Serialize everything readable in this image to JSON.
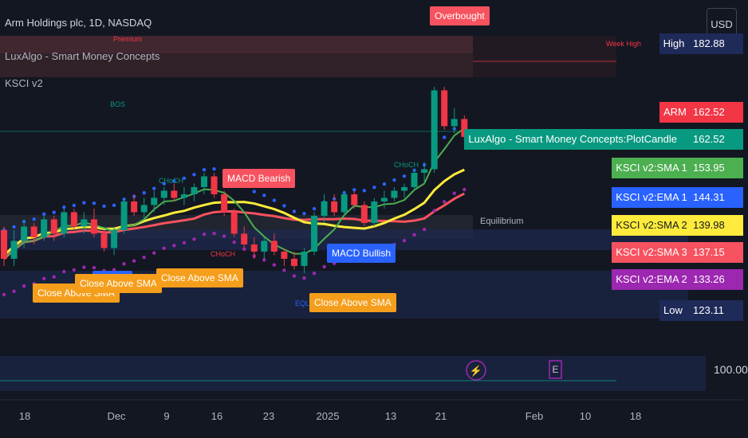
{
  "header": {
    "symbol_line": "Arm Holdings plc, 1D, NASDAQ",
    "indicator_1": "LuxAlgo - Smart Money Concepts",
    "indicator_2": "KSCI v2"
  },
  "currency": "USD",
  "price_scale": {
    "levels": [
      {
        "name": "High",
        "value": "182.88",
        "bg": "#1e2a58",
        "fg": "#ffffff"
      },
      {
        "name": "ARM",
        "value": "162.52",
        "bg": "#f23645",
        "fg": "#ffffff"
      },
      {
        "name": "LuxAlgo - Smart Money Concepts:PlotCandle",
        "value": "162.52",
        "bg": "#089981",
        "fg": "#ffffff"
      },
      {
        "name": "KSCI v2:SMA 1",
        "value": "153.95",
        "bg": "#4caf50",
        "fg": "#ffffff"
      },
      {
        "name": "KSCI v2:EMA 1",
        "value": "144.31",
        "bg": "#2962ff",
        "fg": "#ffffff"
      },
      {
        "name": "KSCI v2:SMA 2",
        "value": "139.98",
        "bg": "#ffeb3b",
        "fg": "#131722"
      },
      {
        "name": "KSCI v2:SMA 3",
        "value": "137.15",
        "bg": "#f7525f",
        "fg": "#ffffff"
      },
      {
        "name": "KSCI v2:EMA 2",
        "value": "133.26",
        "bg": "#9c27b0",
        "fg": "#ffffff"
      },
      {
        "name": "Low",
        "value": "123.11",
        "bg": "#1e2a58",
        "fg": "#ffffff"
      }
    ],
    "bottom_value": "100.00"
  },
  "time_axis": [
    "18",
    "Dec",
    "9",
    "16",
    "23",
    "2025",
    "13",
    "21",
    "Feb",
    "10",
    "18"
  ],
  "signals": {
    "overbought": "Overbought",
    "macd_bearish": "MACD Bearish",
    "macd_bullish": "MACD Bullish",
    "close_above_sma": "Close Above SMA"
  },
  "smc_labels": {
    "premium": "Premium",
    "week_high": "Week High",
    "bos": "BOS",
    "choch": "CHoCH",
    "equilibrium": "Equilibrium",
    "eql": "EQL"
  },
  "markers": {
    "earnings": "E",
    "dividend_icon": "lightning-icon"
  },
  "colors": {
    "up": "#089981",
    "down": "#f23645",
    "sma1": "#4caf50",
    "ema1": "#2962ff",
    "sma2": "#ffeb3b",
    "sma3": "#f7525f",
    "ema2": "#9c27b0"
  },
  "candles": [
    {
      "o": 136,
      "h": 137,
      "l": 126,
      "c": 128
    },
    {
      "o": 128,
      "h": 136,
      "l": 126,
      "c": 133
    },
    {
      "o": 133,
      "h": 139,
      "l": 131,
      "c": 137
    },
    {
      "o": 137,
      "h": 138,
      "l": 132,
      "c": 134
    },
    {
      "o": 134,
      "h": 140,
      "l": 133,
      "c": 139
    },
    {
      "o": 139,
      "h": 140,
      "l": 133,
      "c": 135
    },
    {
      "o": 135,
      "h": 142,
      "l": 134,
      "c": 141
    },
    {
      "o": 141,
      "h": 142,
      "l": 136,
      "c": 137
    },
    {
      "o": 137,
      "h": 141,
      "l": 135,
      "c": 139
    },
    {
      "o": 139,
      "h": 142,
      "l": 134,
      "c": 135
    },
    {
      "o": 135,
      "h": 136,
      "l": 130,
      "c": 131
    },
    {
      "o": 131,
      "h": 137,
      "l": 129,
      "c": 136
    },
    {
      "o": 136,
      "h": 145,
      "l": 135,
      "c": 144
    },
    {
      "o": 144,
      "h": 146,
      "l": 140,
      "c": 141
    },
    {
      "o": 141,
      "h": 145,
      "l": 139,
      "c": 143
    },
    {
      "o": 143,
      "h": 147,
      "l": 141,
      "c": 145
    },
    {
      "o": 145,
      "h": 148,
      "l": 143,
      "c": 147
    },
    {
      "o": 147,
      "h": 149,
      "l": 144,
      "c": 145
    },
    {
      "o": 145,
      "h": 148,
      "l": 143,
      "c": 146
    },
    {
      "o": 146,
      "h": 149,
      "l": 144,
      "c": 148
    },
    {
      "o": 148,
      "h": 152,
      "l": 146,
      "c": 151
    },
    {
      "o": 151,
      "h": 152,
      "l": 145,
      "c": 146
    },
    {
      "o": 146,
      "h": 147,
      "l": 140,
      "c": 141
    },
    {
      "o": 141,
      "h": 142,
      "l": 134,
      "c": 135
    },
    {
      "o": 135,
      "h": 137,
      "l": 131,
      "c": 132
    },
    {
      "o": 132,
      "h": 134,
      "l": 128,
      "c": 130
    },
    {
      "o": 130,
      "h": 134,
      "l": 128,
      "c": 133
    },
    {
      "o": 133,
      "h": 135,
      "l": 129,
      "c": 130
    },
    {
      "o": 130,
      "h": 131,
      "l": 126,
      "c": 128
    },
    {
      "o": 128,
      "h": 130,
      "l": 125,
      "c": 126
    },
    {
      "o": 126,
      "h": 131,
      "l": 124,
      "c": 130
    },
    {
      "o": 130,
      "h": 141,
      "l": 129,
      "c": 140
    },
    {
      "o": 140,
      "h": 146,
      "l": 138,
      "c": 144
    },
    {
      "o": 144,
      "h": 146,
      "l": 140,
      "c": 141
    },
    {
      "o": 141,
      "h": 147,
      "l": 140,
      "c": 146
    },
    {
      "o": 146,
      "h": 147,
      "l": 142,
      "c": 143
    },
    {
      "o": 143,
      "h": 144,
      "l": 137,
      "c": 138
    },
    {
      "o": 138,
      "h": 145,
      "l": 137,
      "c": 144
    },
    {
      "o": 144,
      "h": 147,
      "l": 142,
      "c": 145
    },
    {
      "o": 145,
      "h": 148,
      "l": 144,
      "c": 147
    },
    {
      "o": 147,
      "h": 149,
      "l": 145,
      "c": 148
    },
    {
      "o": 148,
      "h": 153,
      "l": 147,
      "c": 152
    },
    {
      "o": 152,
      "h": 155,
      "l": 149,
      "c": 153
    },
    {
      "o": 153,
      "h": 176,
      "l": 152,
      "c": 175
    },
    {
      "o": 175,
      "h": 176,
      "l": 164,
      "c": 165
    },
    {
      "o": 165,
      "h": 170,
      "l": 163,
      "c": 167
    },
    {
      "o": 167,
      "h": 168,
      "l": 161,
      "c": 162
    }
  ]
}
